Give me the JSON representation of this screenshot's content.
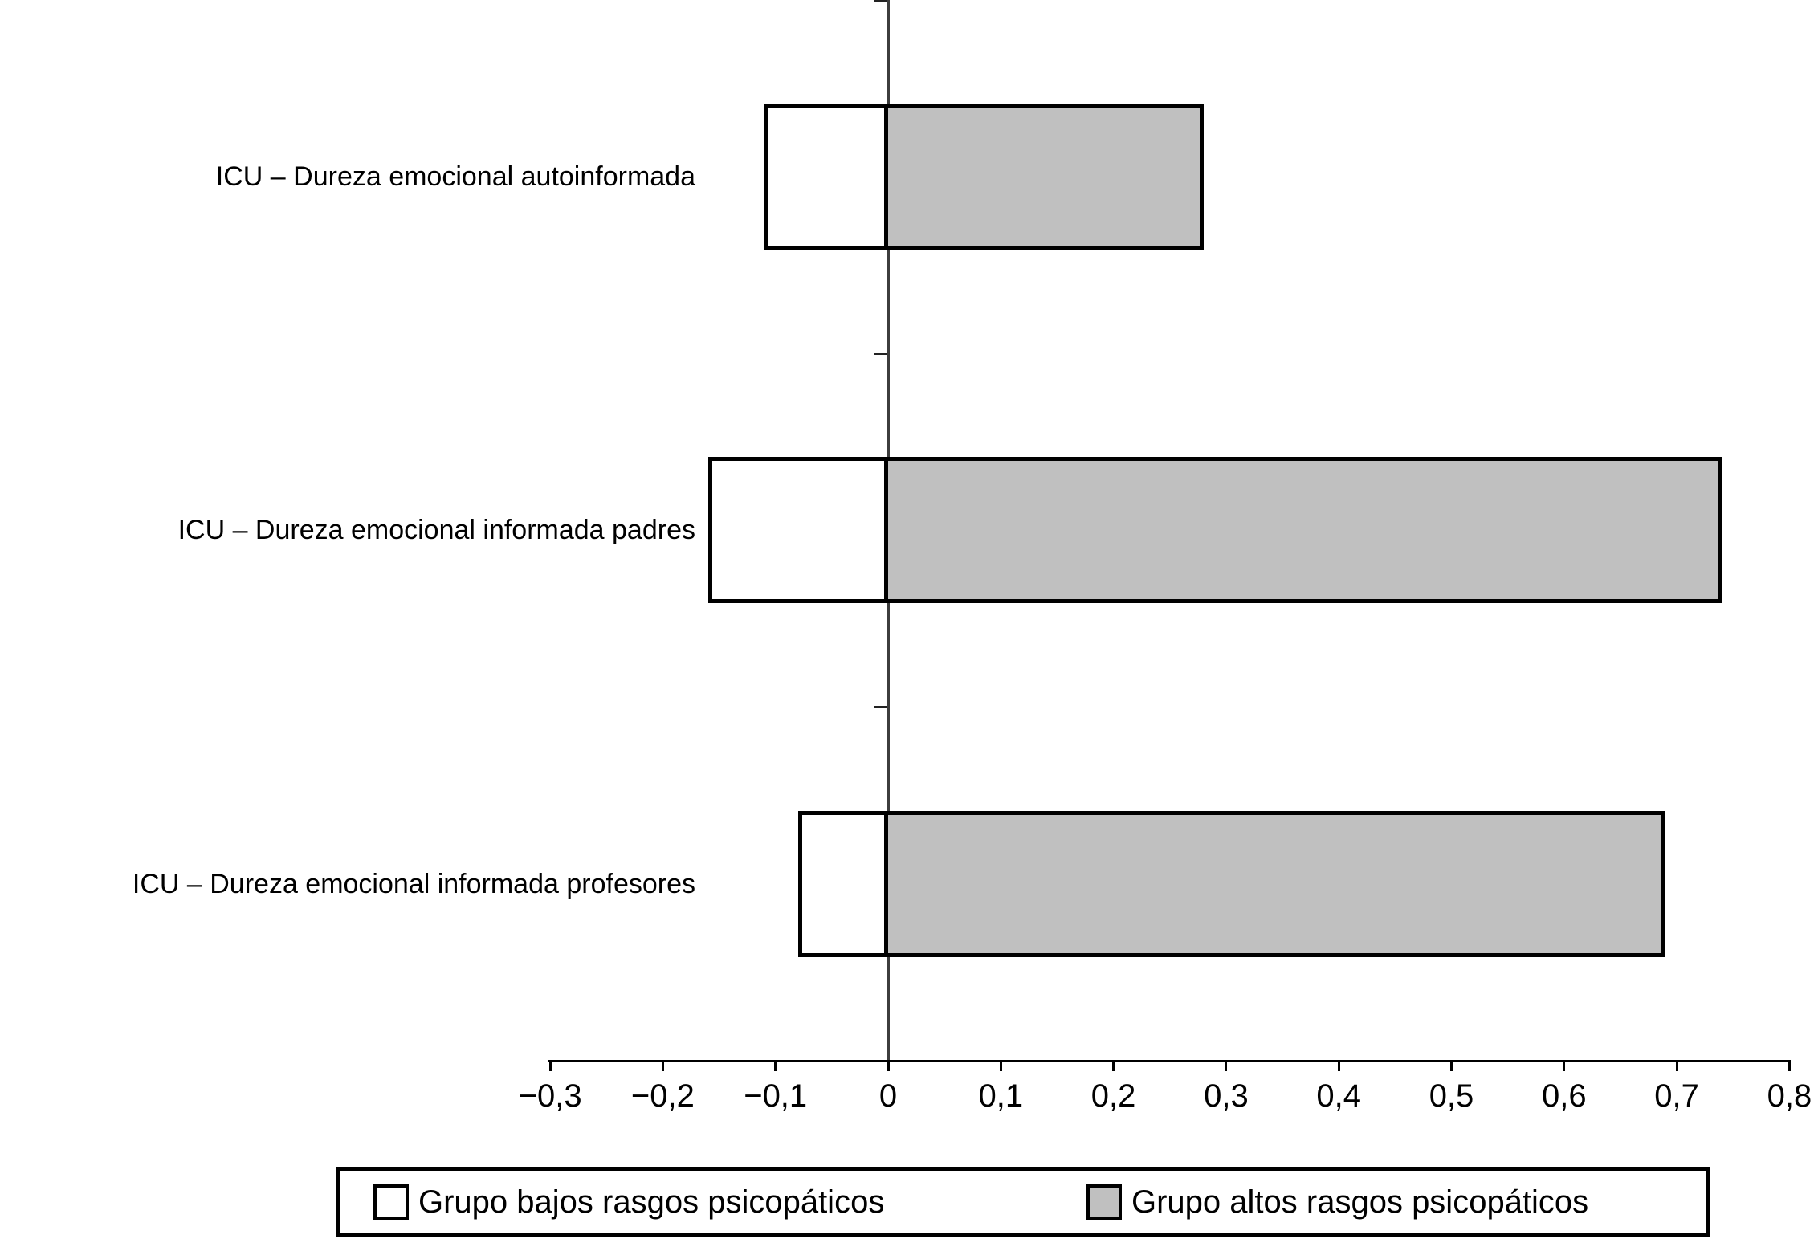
{
  "chart_data": {
    "type": "bar",
    "orientation": "horizontal",
    "title": "",
    "xlabel": "",
    "ylabel": "",
    "grid": false,
    "legend_position": "bottom-boxed",
    "decimal_separator": ",",
    "xlim": [
      -0.3,
      0.8
    ],
    "x_tick_step": 0.1,
    "x_ticks": [
      -0.3,
      -0.2,
      -0.1,
      0,
      0.1,
      0.2,
      0.3,
      0.4,
      0.5,
      0.6,
      0.7,
      0.8
    ],
    "x_tick_labels": [
      "−0,3",
      "−0,2",
      "−0,1",
      "0",
      "0,1",
      "0,2",
      "0,3",
      "0,4",
      "0,5",
      "0,6",
      "0,7",
      "0,8"
    ],
    "categories": [
      "ICU – Dureza emocional autoinformada",
      "ICU – Dureza emocional informada padres",
      "ICU – Dureza emocional informada profesores"
    ],
    "series": [
      {
        "name": "Grupo bajos rasgos psicopáticos",
        "color": "#ffffff",
        "values": [
          -0.11,
          -0.16,
          -0.08
        ]
      },
      {
        "name": "Grupo altos rasgos psicopáticos",
        "color": "#c0c0c0",
        "values": [
          0.28,
          0.74,
          0.69
        ]
      }
    ],
    "colors": {
      "bar_border": "#000000",
      "axis": "#000000",
      "baseline": "#3d3d3d",
      "background": "#ffffff"
    }
  },
  "legend": {
    "items": [
      {
        "label": "Grupo bajos rasgos psicopáticos",
        "swatch_color": "#ffffff"
      },
      {
        "label": "Grupo altos rasgos psicopáticos",
        "swatch_color": "#c0c0c0"
      }
    ]
  }
}
